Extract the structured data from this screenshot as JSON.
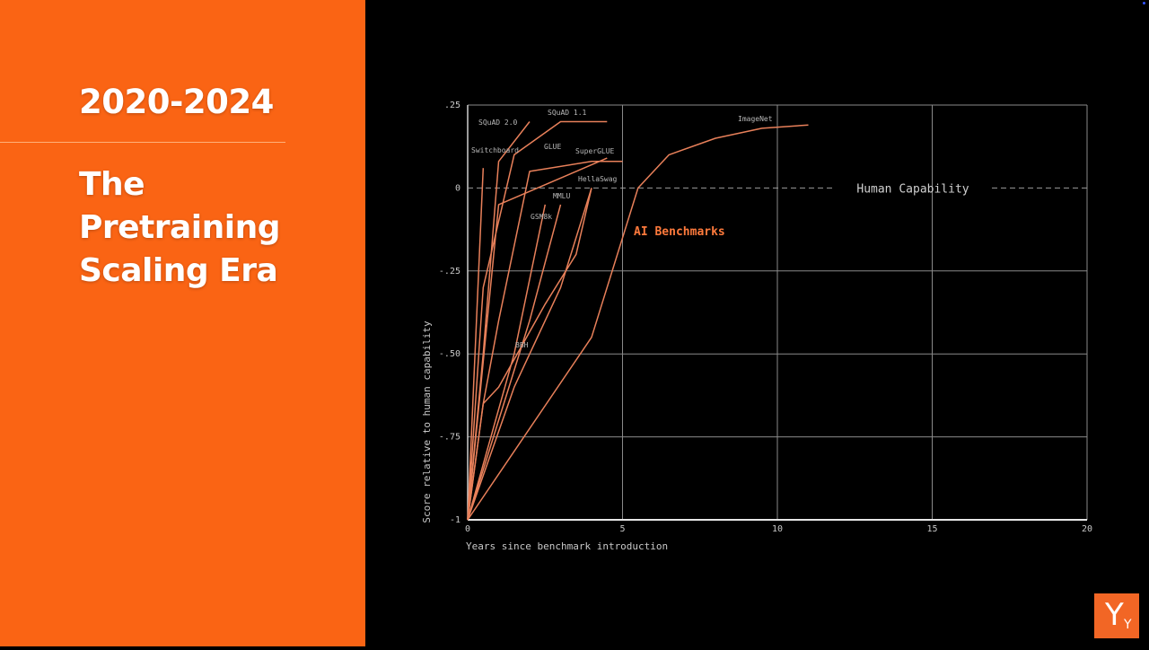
{
  "slide": {
    "years": "2020-2024",
    "title_lines": [
      "The",
      "Pretraining",
      "Scaling Era"
    ],
    "logo_big": "Y",
    "logo_small": "Y"
  },
  "colors": {
    "accent": "#fa6414",
    "line": "#e8805a",
    "grid": "#8a8a8a"
  },
  "chart_data": {
    "type": "line",
    "xlabel": "Years since benchmark introduction",
    "ylabel": "Score relative to human capability",
    "xlim": [
      0,
      20
    ],
    "ylim": [
      -1,
      0.25
    ],
    "x_ticks": [
      0,
      5,
      10,
      15,
      20
    ],
    "x_tick_labels": [
      "0",
      "5",
      "10",
      "15",
      "20"
    ],
    "y_ticks": [
      0.25,
      0,
      -0.25,
      -0.5,
      -0.75,
      -1
    ],
    "y_tick_labels": [
      ".25",
      "0",
      "-.25",
      "-.50",
      "-.75",
      "-1"
    ],
    "reference_line": {
      "y": 0,
      "label": "Human Capability"
    },
    "annotation": "AI Benchmarks",
    "series": [
      {
        "name": "Switchboard",
        "x": [
          0,
          0.5
        ],
        "y": [
          -1,
          0.06
        ]
      },
      {
        "name": "SQuAD 2.0",
        "x": [
          0,
          0.5,
          1,
          2
        ],
        "y": [
          -1,
          -0.5,
          0.08,
          0.2
        ]
      },
      {
        "name": "SQuAD 1.1",
        "x": [
          0,
          0.5,
          1.5,
          3,
          4.5
        ],
        "y": [
          -1,
          -0.3,
          0.1,
          0.2,
          0.2
        ]
      },
      {
        "name": "GLUE",
        "x": [
          0,
          0.5,
          1,
          2,
          4,
          5
        ],
        "y": [
          -1,
          -0.65,
          -0.4,
          0.05,
          0.08,
          0.08
        ]
      },
      {
        "name": "SuperGLUE",
        "x": [
          0,
          1,
          3.5,
          4.5
        ],
        "y": [
          -1,
          -0.05,
          0.05,
          0.09
        ]
      },
      {
        "name": "HellaSwag",
        "x": [
          0,
          0.5,
          1,
          2.5,
          3.5,
          4
        ],
        "y": [
          -1,
          -0.65,
          -0.6,
          -0.35,
          -0.2,
          0
        ]
      },
      {
        "name": "MMLU",
        "x": [
          0,
          1,
          2,
          3
        ],
        "y": [
          -1,
          -0.7,
          -0.4,
          -0.05
        ]
      },
      {
        "name": "GSM8k",
        "x": [
          0,
          0.6,
          1.5,
          2.5
        ],
        "y": [
          -1,
          -0.8,
          -0.5,
          -0.05
        ]
      },
      {
        "name": "BBH",
        "x": [
          0,
          1.5,
          3,
          4
        ],
        "y": [
          -1,
          -0.6,
          -0.3,
          0
        ]
      },
      {
        "name": "ImageNet",
        "x": [
          0,
          4,
          5.5,
          6.5,
          8,
          9.5,
          11
        ],
        "y": [
          -1,
          -0.45,
          0,
          0.1,
          0.15,
          0.18,
          0.19
        ]
      }
    ]
  }
}
